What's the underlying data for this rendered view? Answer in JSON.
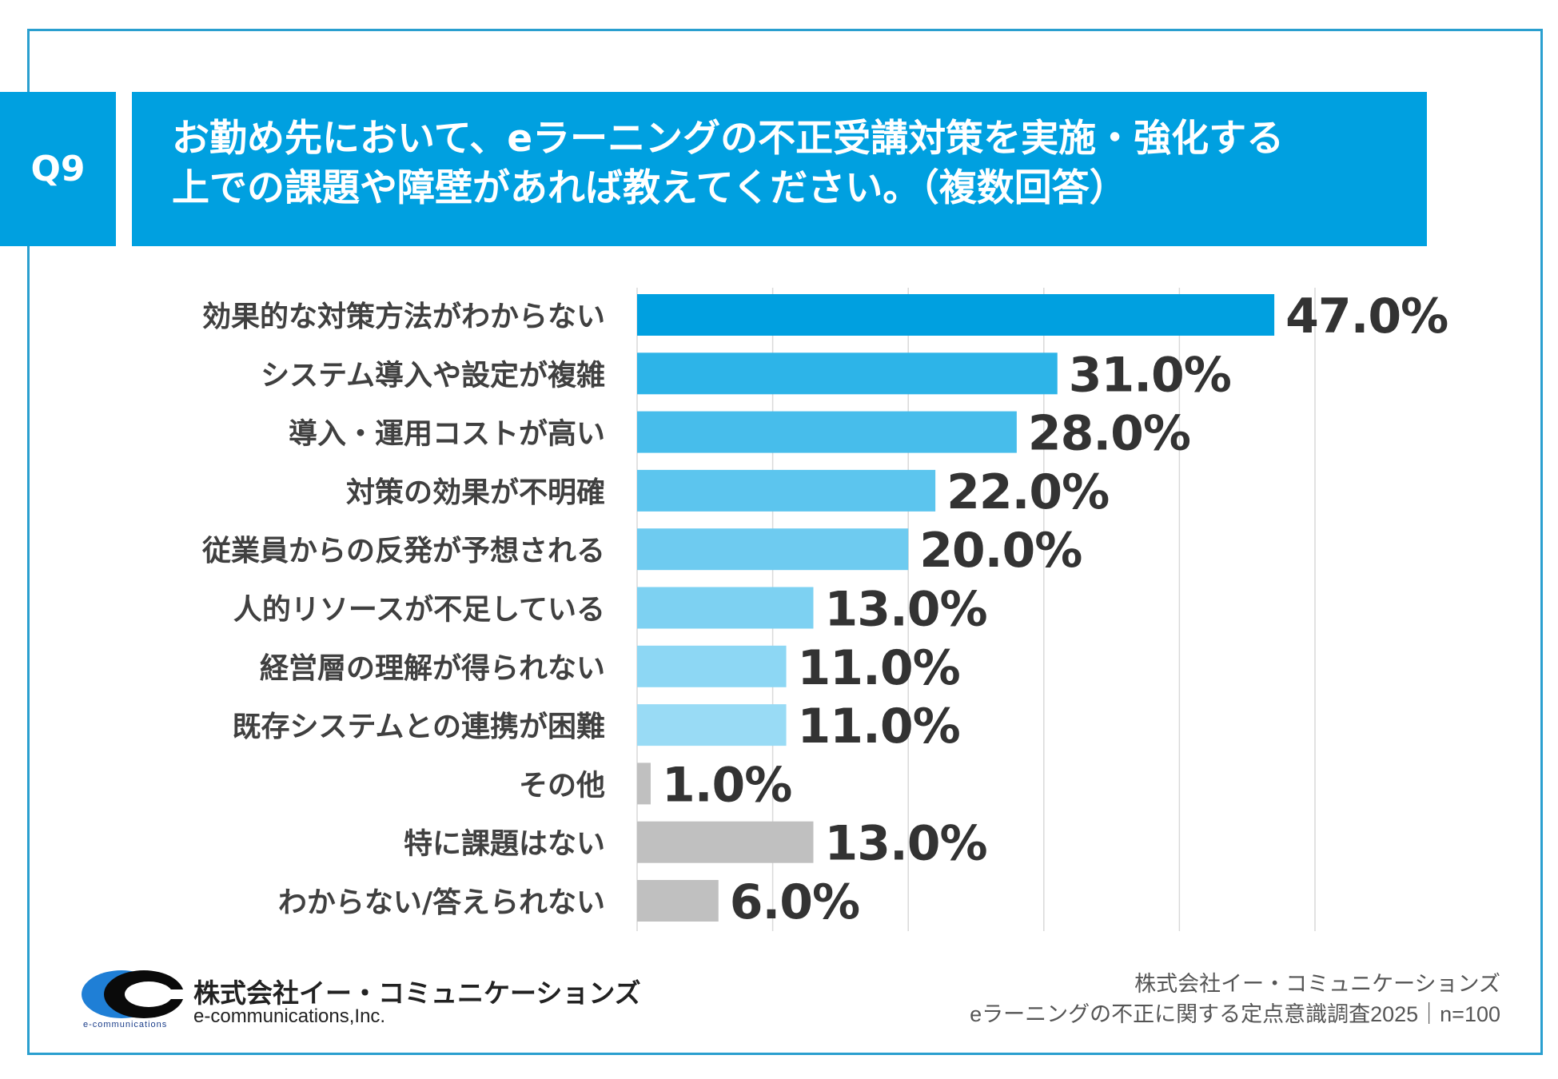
{
  "header": {
    "badge": "Q9",
    "question_line1": "お勤め先において、eラーニングの不正受講対策を実施・強化する",
    "question_line2": "上での課題や障壁があれば教えてください。（複数回答）"
  },
  "chart_data": {
    "type": "bar",
    "orientation": "horizontal",
    "categories": [
      "効果的な対策方法がわからない",
      "システム導入や設定が複雑",
      "導入・運用コストが高い",
      "対策の効果が不明確",
      "従業員からの反発が予想される",
      "人的リソースが不足している",
      "経営層の理解が得られない",
      "既存システムとの連携が困難",
      "その他",
      "特に課題はない",
      "わからない/答えられない"
    ],
    "values": [
      47.0,
      31.0,
      28.0,
      22.0,
      20.0,
      13.0,
      11.0,
      11.0,
      1.0,
      13.0,
      6.0
    ],
    "value_labels": [
      "47.0%",
      "31.0%",
      "28.0%",
      "22.0%",
      "20.0%",
      "13.0%",
      "11.0%",
      "11.0%",
      "1.0%",
      "13.0%",
      "6.0%"
    ],
    "bar_colors": [
      "#00a0e0",
      "#2db4e8",
      "#47bdeb",
      "#5cc5ee",
      "#6ecbf0",
      "#7dd1f2",
      "#8dd7f4",
      "#99dbf5",
      "#c0c0c0",
      "#c0c0c0",
      "#c0c0c0"
    ],
    "xlim": [
      0,
      50
    ],
    "grid": true,
    "grid_color": "#d9d9d9"
  },
  "footer": {
    "company": "株式会社イー・コミュニケーションズ",
    "source": "eラーニングの不正に関する定点意識調査2025｜n=100",
    "logo_company_jp": "株式会社イー・コミュニケーションズ",
    "logo_company_en": "e-communications,Inc.",
    "logo_small_text": "e-communications"
  }
}
